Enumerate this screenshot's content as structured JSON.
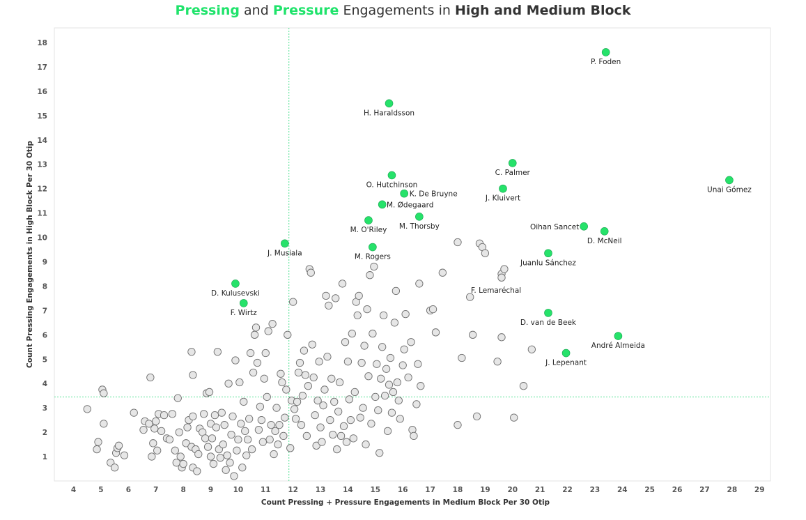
{
  "title": {
    "w1": "Pressing",
    "w2": " and ",
    "w3": "Pressure",
    "w4": " Engagements in ",
    "w5": "High and Medium Block"
  },
  "colors": {
    "accent": "#1fe36b",
    "point_fill": "#e6e6e6",
    "point_stroke": "#6e6e6e",
    "highlight_fill": "#26e26a",
    "reference_line": "#3ddc84"
  },
  "chart_data": {
    "type": "scatter",
    "title": "Pressing and Pressure Engagements in High and Medium Block",
    "xlabel": "Count Pressing + Pressure Engagements in Medium Block Per 30 Otip",
    "ylabel": "Count Pressing Engagements in High Block Per 30 Otip",
    "xlim": [
      3.3,
      29.4
    ],
    "ylim": [
      0,
      18.6
    ],
    "xticks": [
      4,
      5,
      6,
      7,
      8,
      9,
      10,
      11,
      12,
      13,
      14,
      15,
      16,
      17,
      18,
      19,
      20,
      21,
      22,
      23,
      24,
      25,
      26,
      27,
      28,
      29
    ],
    "yticks": [
      1,
      2,
      3,
      4,
      5,
      6,
      7,
      8,
      9,
      10,
      11,
      12,
      13,
      14,
      15,
      16,
      17,
      18
    ],
    "reference_lines": {
      "x": 11.85,
      "y": 3.45
    },
    "grid": false,
    "highlighted": [
      {
        "name": "P. Foden",
        "x": 23.4,
        "y": 17.6
      },
      {
        "name": "H. Haraldsson",
        "x": 15.5,
        "y": 15.5
      },
      {
        "name": "C. Palmer",
        "x": 20.0,
        "y": 13.05
      },
      {
        "name": "O. Hutchinson",
        "x": 15.6,
        "y": 12.55
      },
      {
        "name": "Unai Gómez",
        "x": 27.9,
        "y": 12.35
      },
      {
        "name": "J. Kluivert",
        "x": 19.65,
        "y": 12.0
      },
      {
        "name": "K. De Bruyne",
        "x": 16.05,
        "y": 11.8
      },
      {
        "name": "M. Ødegaard",
        "x": 15.25,
        "y": 11.35
      },
      {
        "name": "M. Thorsby",
        "x": 16.6,
        "y": 10.85
      },
      {
        "name": "M. O'Riley",
        "x": 14.75,
        "y": 10.7
      },
      {
        "name": "Oihan Sancet",
        "x": 22.6,
        "y": 10.45
      },
      {
        "name": "D. McNeil",
        "x": 23.35,
        "y": 10.25
      },
      {
        "name": "J. Musiala",
        "x": 11.7,
        "y": 9.75
      },
      {
        "name": "M. Rogers",
        "x": 14.9,
        "y": 9.6
      },
      {
        "name": "Juanlu Sánchez",
        "x": 21.3,
        "y": 9.35
      },
      {
        "name": "D. Kulusevski",
        "x": 9.9,
        "y": 8.1
      },
      {
        "name": "F. Wirtz",
        "x": 10.2,
        "y": 7.3
      },
      {
        "name": "D. van de Beek",
        "x": 21.3,
        "y": 6.9
      },
      {
        "name": "André Almeida",
        "x": 23.85,
        "y": 5.95
      },
      {
        "name": "J. Lepenant",
        "x": 21.95,
        "y": 5.25
      }
    ],
    "plain_label": {
      "name": "F. Lemaréchal",
      "x": 19.4,
      "y": 8.3
    },
    "others": [
      [
        4.5,
        2.95
      ],
      [
        4.85,
        1.3
      ],
      [
        4.9,
        1.6
      ],
      [
        5.05,
        3.75
      ],
      [
        5.1,
        3.6
      ],
      [
        5.1,
        2.35
      ],
      [
        5.35,
        0.75
      ],
      [
        5.5,
        0.55
      ],
      [
        5.55,
        1.15
      ],
      [
        5.6,
        1.35
      ],
      [
        5.65,
        1.45
      ],
      [
        5.85,
        1.05
      ],
      [
        6.2,
        2.8
      ],
      [
        6.55,
        2.1
      ],
      [
        6.6,
        2.45
      ],
      [
        6.75,
        2.35
      ],
      [
        6.8,
        4.25
      ],
      [
        6.85,
        1.0
      ],
      [
        6.9,
        1.55
      ],
      [
        6.95,
        2.15
      ],
      [
        7.0,
        2.45
      ],
      [
        7.05,
        1.25
      ],
      [
        7.1,
        2.75
      ],
      [
        7.2,
        2.05
      ],
      [
        7.3,
        2.7
      ],
      [
        7.4,
        1.75
      ],
      [
        7.5,
        1.7
      ],
      [
        7.6,
        2.75
      ],
      [
        7.7,
        1.25
      ],
      [
        7.75,
        0.75
      ],
      [
        7.8,
        3.4
      ],
      [
        7.85,
        2.0
      ],
      [
        7.9,
        1.0
      ],
      [
        7.95,
        0.55
      ],
      [
        8.0,
        0.7
      ],
      [
        8.1,
        1.55
      ],
      [
        8.15,
        2.2
      ],
      [
        8.2,
        2.5
      ],
      [
        8.3,
        1.4
      ],
      [
        8.35,
        2.65
      ],
      [
        8.35,
        0.55
      ],
      [
        8.3,
        5.3
      ],
      [
        8.35,
        4.35
      ],
      [
        8.45,
        1.3
      ],
      [
        8.5,
        0.4
      ],
      [
        8.55,
        1.1
      ],
      [
        8.6,
        2.15
      ],
      [
        8.7,
        2.0
      ],
      [
        8.75,
        2.75
      ],
      [
        8.8,
        1.75
      ],
      [
        8.85,
        3.6
      ],
      [
        8.9,
        1.4
      ],
      [
        8.95,
        3.65
      ],
      [
        9.0,
        1.0
      ],
      [
        9.0,
        2.35
      ],
      [
        9.05,
        1.75
      ],
      [
        9.1,
        0.7
      ],
      [
        9.15,
        2.7
      ],
      [
        9.2,
        2.2
      ],
      [
        9.25,
        5.3
      ],
      [
        9.3,
        1.3
      ],
      [
        9.35,
        0.95
      ],
      [
        9.4,
        2.8
      ],
      [
        9.45,
        1.5
      ],
      [
        9.5,
        2.3
      ],
      [
        9.55,
        0.45
      ],
      [
        9.6,
        1.05
      ],
      [
        9.65,
        4.0
      ],
      [
        9.7,
        0.75
      ],
      [
        9.75,
        1.9
      ],
      [
        9.8,
        2.65
      ],
      [
        9.85,
        0.2
      ],
      [
        9.9,
        4.95
      ],
      [
        9.95,
        1.25
      ],
      [
        10.0,
        1.7
      ],
      [
        10.05,
        4.05
      ],
      [
        10.1,
        2.35
      ],
      [
        10.15,
        0.55
      ],
      [
        10.2,
        3.25
      ],
      [
        10.25,
        2.05
      ],
      [
        10.3,
        1.05
      ],
      [
        10.35,
        1.7
      ],
      [
        10.4,
        2.55
      ],
      [
        10.45,
        5.25
      ],
      [
        10.5,
        1.3
      ],
      [
        10.55,
        4.45
      ],
      [
        10.6,
        6.0
      ],
      [
        10.65,
        6.3
      ],
      [
        10.7,
        4.85
      ],
      [
        10.75,
        2.1
      ],
      [
        10.8,
        3.05
      ],
      [
        10.85,
        2.5
      ],
      [
        10.9,
        1.6
      ],
      [
        10.95,
        4.2
      ],
      [
        11.0,
        5.25
      ],
      [
        11.05,
        3.45
      ],
      [
        11.1,
        6.15
      ],
      [
        11.15,
        1.7
      ],
      [
        11.2,
        2.3
      ],
      [
        11.25,
        6.45
      ],
      [
        11.3,
        1.1
      ],
      [
        11.35,
        2.05
      ],
      [
        11.4,
        3.0
      ],
      [
        11.45,
        1.5
      ],
      [
        11.5,
        2.3
      ],
      [
        11.55,
        4.4
      ],
      [
        11.6,
        4.05
      ],
      [
        11.65,
        1.85
      ],
      [
        11.7,
        2.6
      ],
      [
        11.75,
        3.75
      ],
      [
        11.8,
        6.0
      ],
      [
        11.9,
        1.35
      ],
      [
        11.95,
        3.3
      ],
      [
        12.0,
        7.35
      ],
      [
        12.05,
        2.95
      ],
      [
        12.1,
        2.55
      ],
      [
        12.15,
        3.25
      ],
      [
        12.2,
        4.45
      ],
      [
        12.25,
        4.85
      ],
      [
        12.3,
        2.3
      ],
      [
        12.35,
        3.5
      ],
      [
        12.4,
        5.35
      ],
      [
        12.45,
        4.35
      ],
      [
        12.5,
        1.85
      ],
      [
        12.55,
        3.9
      ],
      [
        12.6,
        8.7
      ],
      [
        12.65,
        8.55
      ],
      [
        12.7,
        5.6
      ],
      [
        12.75,
        4.25
      ],
      [
        12.8,
        2.7
      ],
      [
        12.85,
        1.45
      ],
      [
        12.9,
        3.3
      ],
      [
        12.95,
        4.9
      ],
      [
        13.0,
        2.2
      ],
      [
        13.05,
        1.6
      ],
      [
        13.1,
        3.1
      ],
      [
        13.15,
        3.75
      ],
      [
        13.2,
        7.6
      ],
      [
        13.25,
        5.1
      ],
      [
        13.3,
        7.2
      ],
      [
        13.35,
        2.5
      ],
      [
        13.4,
        4.2
      ],
      [
        13.45,
        1.9
      ],
      [
        13.5,
        3.25
      ],
      [
        13.55,
        7.5
      ],
      [
        13.6,
        1.3
      ],
      [
        13.65,
        2.85
      ],
      [
        13.7,
        4.05
      ],
      [
        13.75,
        1.85
      ],
      [
        13.8,
        8.1
      ],
      [
        13.85,
        2.25
      ],
      [
        13.9,
        5.7
      ],
      [
        13.95,
        1.6
      ],
      [
        14.0,
        4.9
      ],
      [
        14.05,
        3.35
      ],
      [
        14.1,
        2.5
      ],
      [
        14.15,
        6.05
      ],
      [
        14.2,
        1.75
      ],
      [
        14.25,
        3.65
      ],
      [
        14.3,
        7.35
      ],
      [
        14.35,
        6.8
      ],
      [
        14.4,
        7.6
      ],
      [
        14.45,
        2.6
      ],
      [
        14.5,
        4.85
      ],
      [
        14.55,
        3.0
      ],
      [
        14.6,
        5.55
      ],
      [
        14.65,
        1.5
      ],
      [
        14.7,
        7.05
      ],
      [
        14.75,
        4.3
      ],
      [
        14.8,
        8.45
      ],
      [
        14.85,
        2.35
      ],
      [
        14.9,
        6.05
      ],
      [
        14.95,
        8.8
      ],
      [
        15.0,
        3.45
      ],
      [
        15.05,
        4.8
      ],
      [
        15.1,
        2.9
      ],
      [
        15.15,
        1.15
      ],
      [
        15.2,
        4.2
      ],
      [
        15.25,
        5.5
      ],
      [
        15.3,
        6.8
      ],
      [
        15.35,
        3.5
      ],
      [
        15.4,
        4.6
      ],
      [
        15.45,
        2.05
      ],
      [
        15.5,
        3.95
      ],
      [
        15.55,
        5.05
      ],
      [
        15.6,
        2.8
      ],
      [
        15.65,
        3.65
      ],
      [
        15.7,
        6.5
      ],
      [
        15.75,
        7.8
      ],
      [
        15.8,
        4.05
      ],
      [
        15.85,
        3.3
      ],
      [
        15.9,
        2.55
      ],
      [
        16.0,
        4.75
      ],
      [
        16.05,
        5.4
      ],
      [
        16.1,
        6.85
      ],
      [
        16.2,
        4.25
      ],
      [
        16.3,
        5.7
      ],
      [
        16.35,
        2.1
      ],
      [
        16.4,
        1.85
      ],
      [
        16.5,
        3.15
      ],
      [
        16.55,
        4.8
      ],
      [
        16.6,
        8.1
      ],
      [
        16.65,
        3.9
      ],
      [
        17.0,
        7.0
      ],
      [
        17.1,
        7.05
      ],
      [
        17.2,
        6.1
      ],
      [
        17.45,
        8.55
      ],
      [
        18.0,
        9.8
      ],
      [
        18.15,
        5.05
      ],
      [
        18.0,
        2.3
      ],
      [
        18.45,
        7.55
      ],
      [
        18.55,
        6.0
      ],
      [
        18.7,
        2.65
      ],
      [
        18.8,
        9.75
      ],
      [
        18.9,
        9.6
      ],
      [
        19.0,
        9.35
      ],
      [
        19.45,
        4.9
      ],
      [
        19.6,
        5.9
      ],
      [
        19.6,
        8.5
      ],
      [
        19.7,
        8.7
      ],
      [
        19.6,
        8.35
      ],
      [
        20.05,
        2.6
      ],
      [
        20.4,
        3.9
      ],
      [
        20.7,
        5.4
      ]
    ]
  }
}
